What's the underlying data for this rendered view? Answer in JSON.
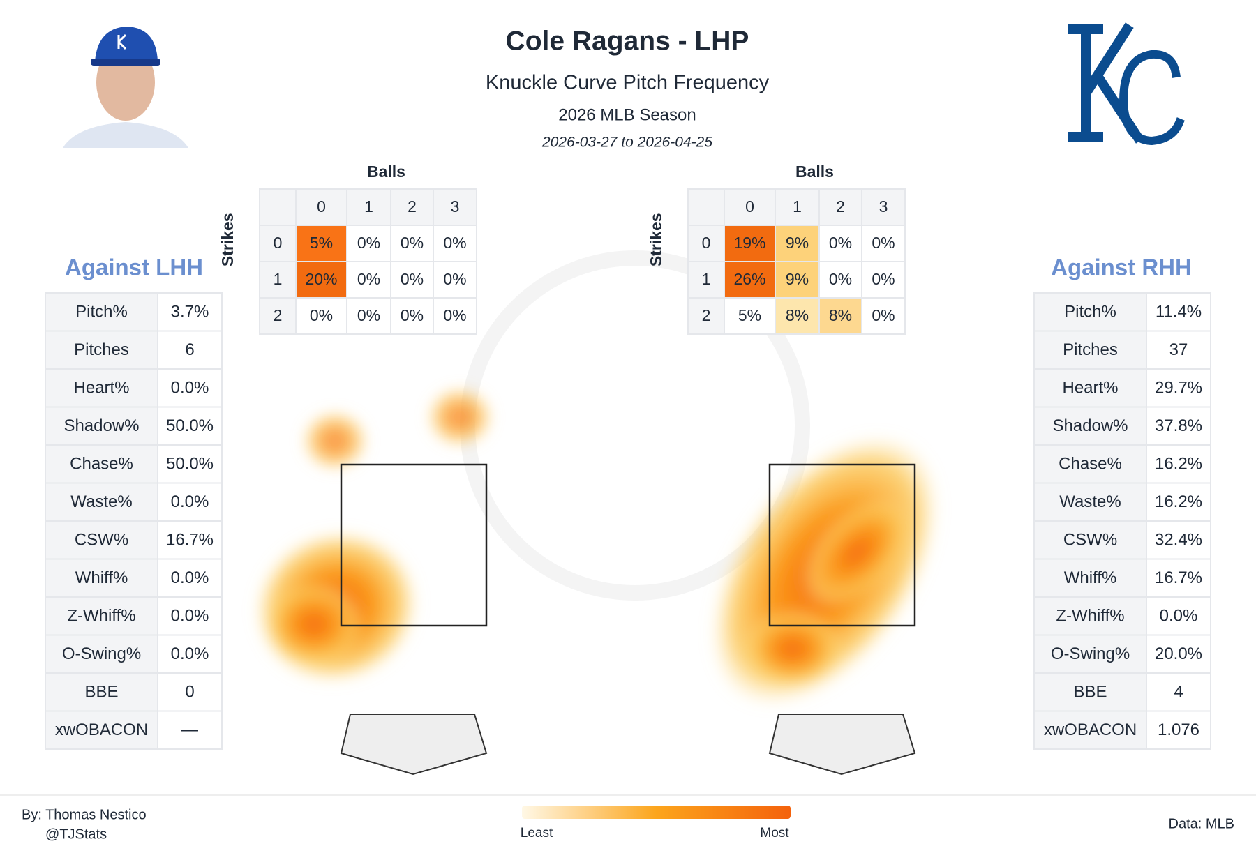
{
  "header": {
    "title": "Cole Ragans - LHP",
    "subtitle": "Knuckle Curve Pitch Frequency",
    "season": "2026 MLB Season",
    "dates": "2026-03-27 to 2026-04-25"
  },
  "count_grids": [
    {
      "balls_label": "Balls",
      "strikes_label": "Strikes",
      "balls": [
        "0",
        "1",
        "2",
        "3"
      ],
      "strikes": [
        "0",
        "1",
        "2"
      ],
      "cells": [
        [
          "5%",
          "0%",
          "0%",
          "0%"
        ],
        [
          "20%",
          "0%",
          "0%",
          "0%"
        ],
        [
          "0%",
          "0%",
          "0%",
          "0%"
        ]
      ],
      "cell_colors": [
        [
          "#f97316",
          null,
          null,
          null
        ],
        [
          "#f26b10",
          null,
          null,
          null
        ],
        [
          null,
          null,
          null,
          null
        ]
      ]
    },
    {
      "balls_label": "Balls",
      "strikes_label": "Strikes",
      "balls": [
        "0",
        "1",
        "2",
        "3"
      ],
      "strikes": [
        "0",
        "1",
        "2"
      ],
      "cells": [
        [
          "19%",
          "9%",
          "0%",
          "0%"
        ],
        [
          "26%",
          "9%",
          "0%",
          "0%"
        ],
        [
          "5%",
          "8%",
          "8%",
          "0%"
        ]
      ],
      "cell_colors": [
        [
          "#f26b10",
          "#fdd27a",
          null,
          null
        ],
        [
          "#f26b10",
          "#fdd27a",
          null,
          null
        ],
        [
          null,
          "#fde6ad",
          "#fdd890",
          null
        ]
      ]
    }
  ],
  "stat_tables": [
    {
      "title": "Against LHH",
      "rows": [
        [
          "Pitch%",
          "3.7%"
        ],
        [
          "Pitches",
          "6"
        ],
        [
          "Heart%",
          "0.0%"
        ],
        [
          "Shadow%",
          "50.0%"
        ],
        [
          "Chase%",
          "50.0%"
        ],
        [
          "Waste%",
          "0.0%"
        ],
        [
          "CSW%",
          "16.7%"
        ],
        [
          "Whiff%",
          "0.0%"
        ],
        [
          "Z-Whiff%",
          "0.0%"
        ],
        [
          "O-Swing%",
          "0.0%"
        ],
        [
          "BBE",
          "0"
        ],
        [
          "xwOBACON",
          "—"
        ]
      ]
    },
    {
      "title": "Against RHH",
      "rows": [
        [
          "Pitch%",
          "11.4%"
        ],
        [
          "Pitches",
          "37"
        ],
        [
          "Heart%",
          "29.7%"
        ],
        [
          "Shadow%",
          "37.8%"
        ],
        [
          "Chase%",
          "16.2%"
        ],
        [
          "Waste%",
          "16.2%"
        ],
        [
          "CSW%",
          "32.4%"
        ],
        [
          "Whiff%",
          "16.7%"
        ],
        [
          "Z-Whiff%",
          "0.0%"
        ],
        [
          "O-Swing%",
          "20.0%"
        ],
        [
          "BBE",
          "4"
        ],
        [
          "xwOBACON",
          "1.076"
        ]
      ]
    }
  ],
  "legend": {
    "least": "Least",
    "most": "Most"
  },
  "footer": {
    "author": "By: Thomas Nestico",
    "handle": "@TJStats",
    "source": "Data: MLB"
  }
}
